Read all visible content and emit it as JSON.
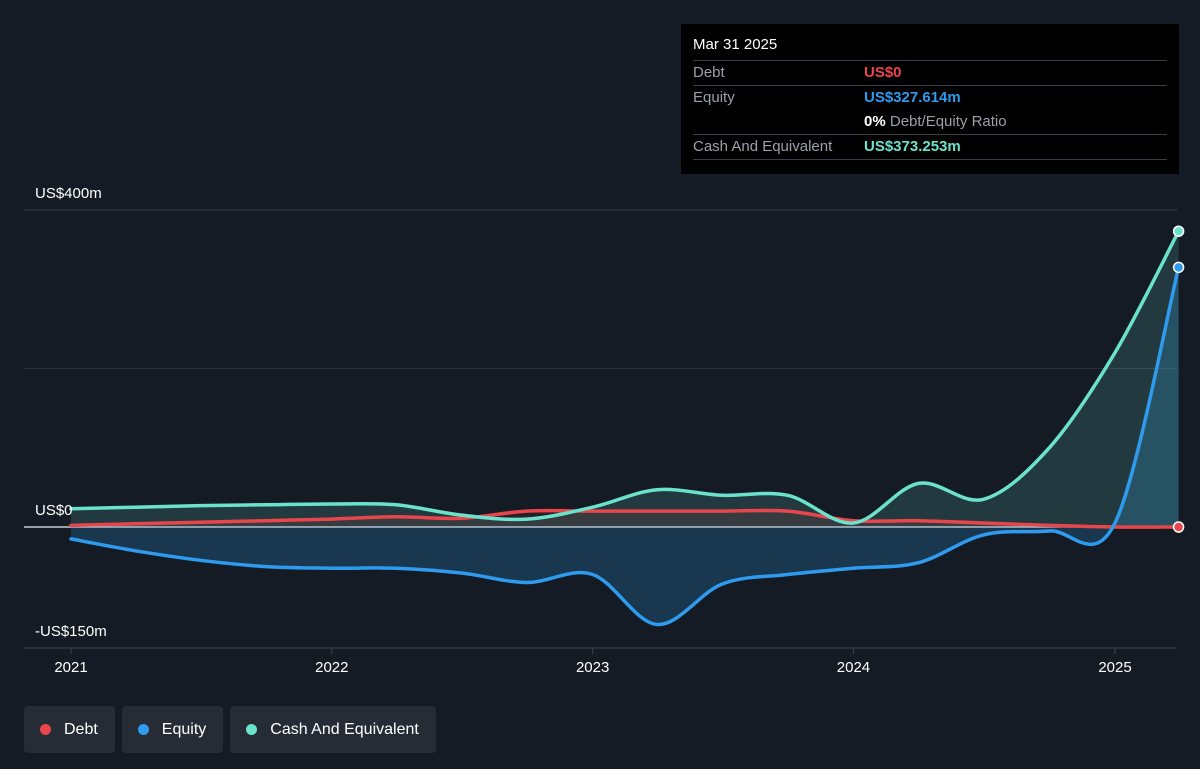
{
  "tooltip": {
    "date": "Mar 31 2025",
    "debt_label": "Debt",
    "debt_value": "US$0",
    "equity_label": "Equity",
    "equity_value": "US$327.614m",
    "ratio_value": "0%",
    "ratio_label": "Debt/Equity Ratio",
    "cash_label": "Cash And Equivalent",
    "cash_value": "US$373.253m"
  },
  "legend": [
    {
      "label": "Debt",
      "color": "#e8464b"
    },
    {
      "label": "Equity",
      "color": "#2e9bef"
    },
    {
      "label": "Cash And Equivalent",
      "color": "#6be3cc"
    }
  ],
  "chart_data": {
    "type": "area",
    "y_tick_labels": [
      "US$400m",
      "US$0",
      "-US$150m"
    ],
    "x_tick_labels": [
      "2021",
      "2022",
      "2023",
      "2024",
      "2025"
    ],
    "ylim": [
      -150,
      400
    ],
    "grid": true,
    "legend_position": "bottom-left",
    "series": [
      {
        "name": "Debt",
        "color": "#e8464b",
        "x": [
          "2021-01-01",
          "2021-04-01",
          "2021-07-01",
          "2021-10-01",
          "2022-01-01",
          "2022-04-01",
          "2022-07-01",
          "2022-10-01",
          "2023-01-01",
          "2023-04-01",
          "2023-07-01",
          "2023-10-01",
          "2024-01-01",
          "2024-04-01",
          "2024-07-01",
          "2024-10-01",
          "2025-01-01",
          "2025-03-31"
        ],
        "values": [
          2,
          4,
          6,
          8,
          10,
          13,
          11,
          20,
          20,
          20,
          20,
          20,
          8,
          8,
          5,
          2,
          0,
          0
        ]
      },
      {
        "name": "Equity",
        "color": "#2e9bef",
        "x": [
          "2021-01-01",
          "2021-04-01",
          "2021-07-01",
          "2021-10-01",
          "2022-01-01",
          "2022-04-01",
          "2022-07-01",
          "2022-10-01",
          "2023-01-01",
          "2023-04-01",
          "2023-07-01",
          "2023-10-01",
          "2024-01-01",
          "2024-04-01",
          "2024-07-01",
          "2024-10-01",
          "2025-01-01",
          "2025-03-31"
        ],
        "values": [
          -15,
          -30,
          -42,
          -50,
          -52,
          -52,
          -58,
          -70,
          -60,
          -123,
          -72,
          -60,
          -52,
          -45,
          -10,
          -5,
          5,
          327.614
        ]
      },
      {
        "name": "Cash And Equivalent",
        "color": "#6be3cc",
        "x": [
          "2021-01-01",
          "2021-04-01",
          "2021-07-01",
          "2021-10-01",
          "2022-01-01",
          "2022-04-01",
          "2022-07-01",
          "2022-10-01",
          "2023-01-01",
          "2023-04-01",
          "2023-07-01",
          "2023-10-01",
          "2024-01-01",
          "2024-04-01",
          "2024-07-01",
          "2024-10-01",
          "2025-01-01",
          "2025-03-31"
        ],
        "values": [
          23,
          25,
          27,
          28,
          29,
          28,
          15,
          10,
          25,
          47,
          40,
          40,
          5,
          55,
          35,
          100,
          220,
          373.253
        ]
      }
    ]
  }
}
